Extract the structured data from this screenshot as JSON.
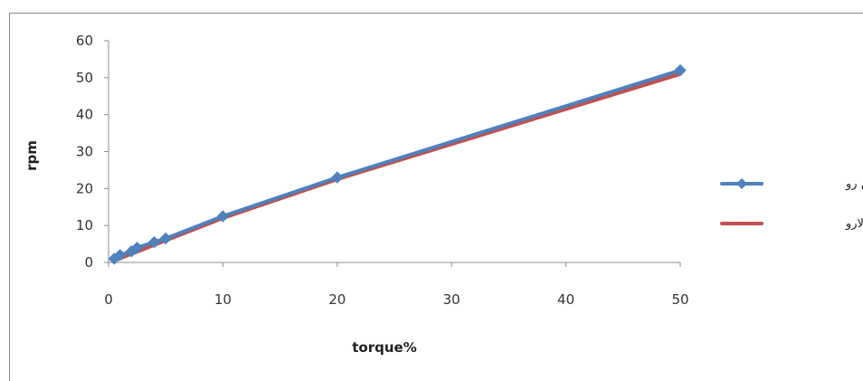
{
  "chart_data": {
    "type": "line",
    "title": "",
    "xlabel": "torque%",
    "ylabel": "rpm",
    "xlim": [
      0,
      50
    ],
    "ylim": [
      0,
      60
    ],
    "x_ticks": [
      "0",
      "10",
      "20",
      "30",
      "40",
      "50"
    ],
    "y_ticks": [
      "0",
      "10",
      "20",
      "30",
      "40",
      "50",
      "60"
    ],
    "grid": false,
    "legend_position": "right",
    "series": [
      {
        "name": "منحنی پایین رو",
        "color": "#4f81bd",
        "marker": "diamond",
        "points": [
          {
            "x": 0.5,
            "y": 1
          },
          {
            "x": 1,
            "y": 2
          },
          {
            "x": 2,
            "y": 3
          },
          {
            "x": 2.5,
            "y": 4
          },
          {
            "x": 4,
            "y": 5.5
          },
          {
            "x": 5,
            "y": 6.5
          },
          {
            "x": 10,
            "y": 12.5
          },
          {
            "x": 20,
            "y": 23
          },
          {
            "x": 50,
            "y": 52
          }
        ]
      },
      {
        "name": "منحنی بالارو",
        "color": "#c0504d",
        "marker": "none",
        "points": [
          {
            "x": 0.5,
            "y": 0.5
          },
          {
            "x": 10,
            "y": 12
          },
          {
            "x": 20,
            "y": 22.5
          },
          {
            "x": 50,
            "y": 51
          }
        ]
      }
    ]
  }
}
